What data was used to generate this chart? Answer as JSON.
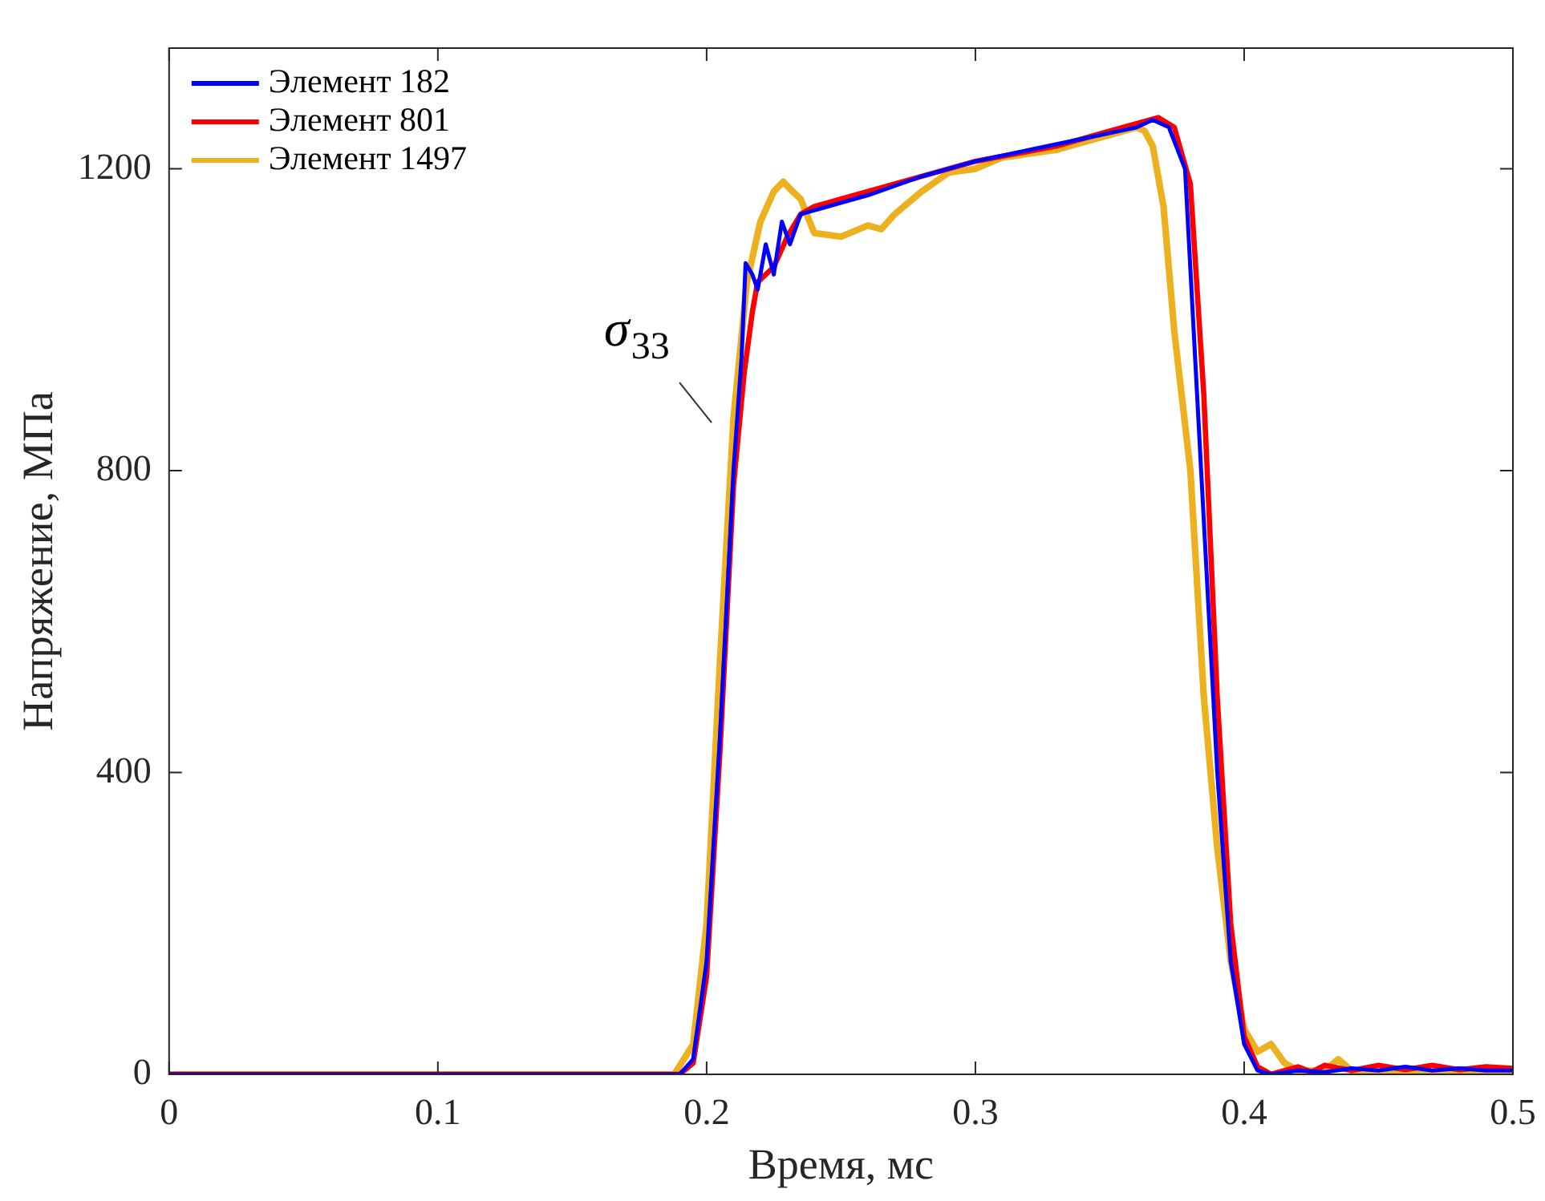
{
  "chart_data": {
    "type": "line",
    "xlabel": "Время, мс",
    "ylabel": "Напряжение, МПа",
    "xlim": [
      0,
      0.5
    ],
    "xticks": [
      0,
      0.1,
      0.2,
      0.3,
      0.4,
      0.5
    ],
    "ylim": [
      0,
      1360
    ],
    "yticks": [
      0,
      400,
      800,
      1200
    ],
    "grid": false,
    "legend": "top left",
    "marker": "none",
    "line_style": "solid",
    "annotations": [
      "σ$_{33}$"
    ],
    "series": [
      {
        "name": "Элемент 182",
        "color": "#0000ff",
        "x": [
          0,
          0.19,
          0.195,
          0.2,
          0.205,
          0.21,
          0.213,
          0.2145,
          0.217,
          0.219,
          0.222,
          0.225,
          0.228,
          0.231,
          0.235,
          0.24,
          0.26,
          0.28,
          0.3,
          0.32,
          0.34,
          0.36,
          0.366,
          0.372,
          0.378,
          0.384,
          0.39,
          0.395,
          0.4,
          0.405,
          0.41,
          0.42,
          0.43,
          0.44,
          0.45,
          0.46,
          0.47,
          0.48,
          0.49,
          0.5
        ],
        "values": [
          0,
          0,
          20,
          150,
          450,
          800,
          950,
          1075,
          1060,
          1040,
          1100,
          1060,
          1130,
          1100,
          1140,
          1145,
          1165,
          1190,
          1210,
          1225,
          1240,
          1255,
          1265,
          1255,
          1200,
          800,
          400,
          150,
          40,
          5,
          0,
          5,
          3,
          8,
          5,
          10,
          5,
          8,
          5,
          5
        ]
      },
      {
        "name": "Элемент 801",
        "color": "#ff0000",
        "x": [
          0,
          0.19,
          0.195,
          0.2,
          0.205,
          0.21,
          0.214,
          0.217,
          0.219,
          0.222,
          0.225,
          0.23,
          0.235,
          0.24,
          0.25,
          0.27,
          0.3,
          0.33,
          0.35,
          0.368,
          0.374,
          0.38,
          0.385,
          0.39,
          0.395,
          0.4,
          0.405,
          0.41,
          0.42,
          0.425,
          0.43,
          0.44,
          0.45,
          0.46,
          0.47,
          0.48,
          0.49,
          0.5
        ],
        "values": [
          0,
          0,
          15,
          130,
          430,
          780,
          930,
          1010,
          1050,
          1060,
          1070,
          1110,
          1140,
          1150,
          1160,
          1180,
          1210,
          1230,
          1250,
          1268,
          1255,
          1180,
          900,
          500,
          200,
          50,
          10,
          0,
          10,
          3,
          12,
          5,
          12,
          6,
          12,
          6,
          10,
          8
        ]
      },
      {
        "name": "Элемент 1497",
        "color": "#edb120",
        "x": [
          0,
          0.188,
          0.195,
          0.2,
          0.205,
          0.21,
          0.215,
          0.22,
          0.225,
          0.2285,
          0.232,
          0.235,
          0.24,
          0.25,
          0.26,
          0.265,
          0.27,
          0.28,
          0.29,
          0.3,
          0.31,
          0.32,
          0.33,
          0.34,
          0.35,
          0.36,
          0.363,
          0.366,
          0.37,
          0.374,
          0.38,
          0.385,
          0.39,
          0.395,
          0.4,
          0.405,
          0.41,
          0.415,
          0.42,
          0.43,
          0.435,
          0.44,
          0.45,
          0.46,
          0.47,
          0.48,
          0.49,
          0.5
        ],
        "values": [
          0,
          0,
          40,
          200,
          550,
          870,
          1050,
          1130,
          1170,
          1183,
          1170,
          1160,
          1115,
          1110,
          1125,
          1120,
          1140,
          1170,
          1195,
          1200,
          1215,
          1220,
          1225,
          1235,
          1245,
          1255,
          1250,
          1230,
          1150,
          985,
          800,
          500,
          300,
          150,
          60,
          30,
          40,
          15,
          5,
          5,
          20,
          5,
          3,
          6,
          3,
          5,
          3,
          4
        ]
      }
    ]
  }
}
